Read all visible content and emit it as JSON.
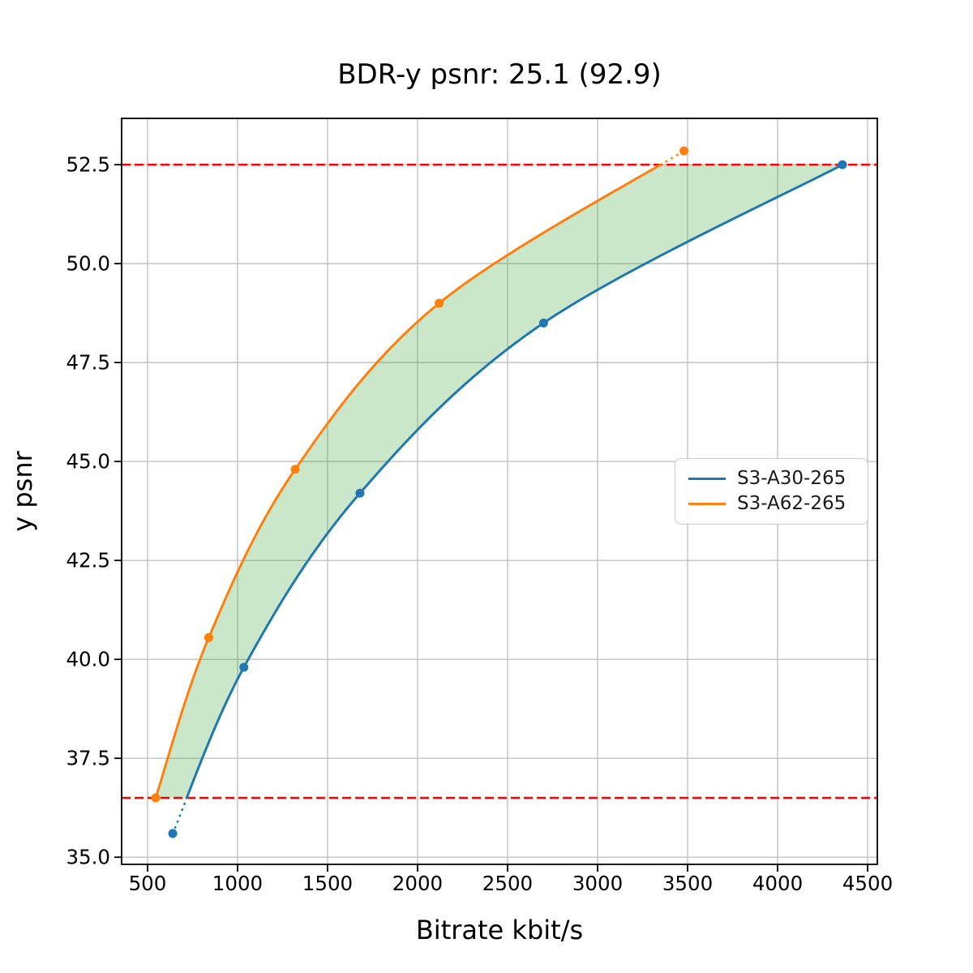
{
  "title": "BDR-y psnr: 25.1 (92.9)",
  "chart_data": {
    "type": "line",
    "title": "BDR-y psnr: 25.1 (92.9)",
    "xlabel": "Bitrate kbit/s",
    "ylabel": "y psnr",
    "xlim": [
      356,
      4554
    ],
    "ylim": [
      34.82,
      53.67
    ],
    "xticks": [
      500,
      1000,
      1500,
      2000,
      2500,
      3000,
      3500,
      4000,
      4500
    ],
    "yticks": [
      35.0,
      37.5,
      40.0,
      42.5,
      45.0,
      47.5,
      50.0,
      52.5
    ],
    "grid": true,
    "grid_color": "#c2c2c2",
    "legend_position": "center right",
    "series": [
      {
        "name": "S3-A30-265",
        "color": "#1f77b4",
        "points": [
          [
            640,
            35.6
          ],
          [
            1035,
            39.8
          ],
          [
            1680,
            44.2
          ],
          [
            2700,
            48.5
          ],
          [
            4360,
            52.5
          ]
        ]
      },
      {
        "name": "S3-A62-265",
        "color": "#ff7f0e",
        "points": [
          [
            545,
            36.5
          ],
          [
            840,
            40.55
          ],
          [
            1320,
            44.8
          ],
          [
            2120,
            49.0
          ],
          [
            3480,
            52.85
          ]
        ]
      }
    ],
    "overlap_lines": {
      "style": "dashed",
      "color": "#ff0000",
      "values": [
        36.5,
        52.5
      ]
    },
    "fill_between": {
      "color": "#2ca02c",
      "opacity": 0.25,
      "y_range": [
        36.5,
        52.5
      ]
    }
  },
  "legend": {
    "items": [
      {
        "label": "S3-A30-265",
        "color": "#1f77b4"
      },
      {
        "label": "S3-A62-265",
        "color": "#ff7f0e"
      }
    ]
  }
}
